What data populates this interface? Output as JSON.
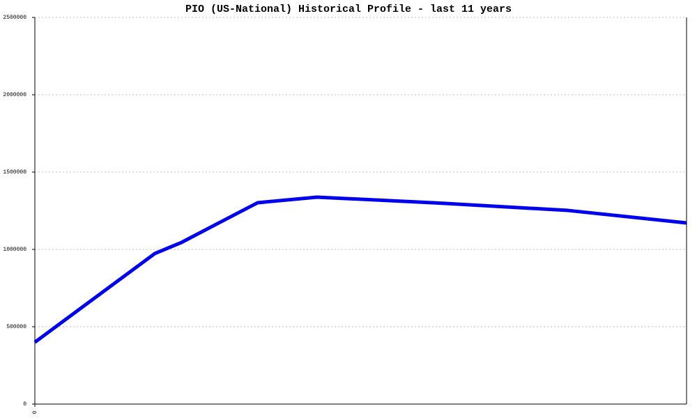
{
  "chart_data": {
    "type": "line",
    "title": "PIO (US-National) Historical Profile - last 11 years",
    "x": [
      0,
      18.4,
      22.5,
      27.8,
      34.2,
      43.3,
      61,
      81.8,
      100
    ],
    "series": [
      {
        "color": "#0000ee",
        "values": [
          400000,
          973000,
          1045000,
          1162000,
          1302000,
          1338000,
          1302000,
          1252000,
          1171000
        ]
      }
    ],
    "xlim": [
      0,
      100
    ],
    "xticks": [
      0
    ],
    "ylim": [
      0,
      2500000
    ],
    "yticks": [
      0,
      500000,
      1000000,
      1500000,
      2000000,
      2500000
    ],
    "grid": true
  }
}
